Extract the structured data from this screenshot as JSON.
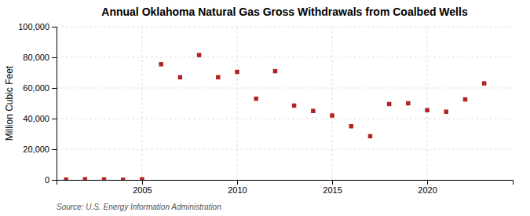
{
  "chart_data": {
    "type": "scatter",
    "title": "Annual Oklahoma Natural Gas Gross Withdrawals from Coalbed Wells",
    "ylabel": "Million Cubic Feet",
    "source": "Source: U.S. Energy Information Administration",
    "color": "#b22222",
    "marker": "square",
    "x": [
      2001,
      2002,
      2003,
      2004,
      2005,
      2006,
      2007,
      2008,
      2009,
      2010,
      2011,
      2012,
      2013,
      2014,
      2015,
      2016,
      2017,
      2018,
      2019,
      2020,
      2021,
      2022,
      2023
    ],
    "values": [
      200,
      400,
      300,
      100,
      400,
      75500,
      67000,
      81500,
      67000,
      70500,
      53000,
      71000,
      48500,
      45000,
      42000,
      35000,
      28500,
      49500,
      50000,
      45500,
      44500,
      52500,
      63000
    ],
    "xlim": [
      2000.5,
      2024.5
    ],
    "xticks": [
      2005,
      2010,
      2015,
      2020
    ],
    "ylim": [
      0,
      100000
    ],
    "yticks": [
      0,
      {
        "value": 20000,
        "label": "20,000"
      },
      {
        "value": 40000,
        "label": "40,000"
      },
      {
        "value": 60000,
        "label": "60,000"
      },
      {
        "value": 80000,
        "label": "80,000"
      },
      {
        "value": 100000,
        "label": "100,000"
      }
    ],
    "grid": true
  }
}
